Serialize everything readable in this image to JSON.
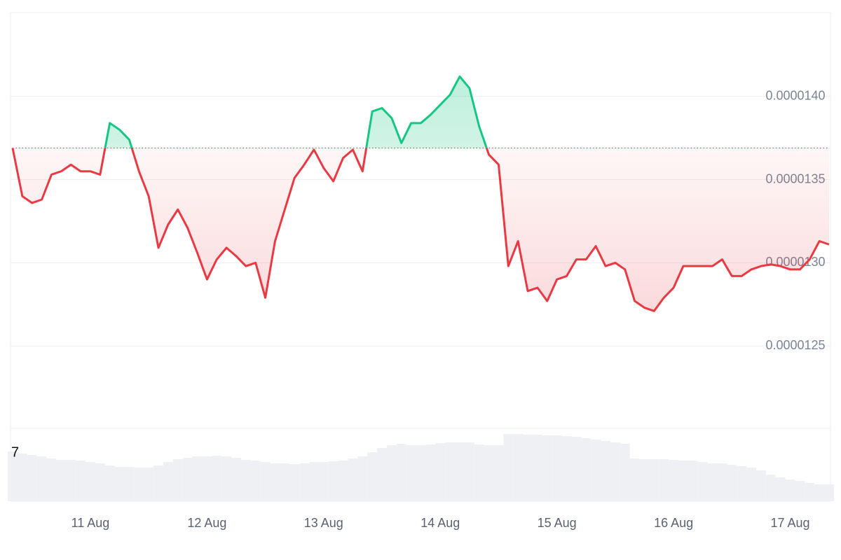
{
  "chart_data": {
    "type": "line",
    "categories": [
      null,
      null,
      null,
      null,
      null,
      null,
      null,
      null,
      "11 Aug",
      null,
      null,
      null,
      null,
      null,
      null,
      null,
      null,
      null,
      null,
      null,
      "12 Aug",
      null,
      null,
      null,
      null,
      null,
      null,
      null,
      null,
      null,
      null,
      null,
      "13 Aug",
      null,
      null,
      null,
      null,
      null,
      null,
      null,
      null,
      null,
      null,
      null,
      "14 Aug",
      null,
      null,
      null,
      null,
      null,
      null,
      null,
      null,
      null,
      null,
      null,
      "15 Aug",
      null,
      null,
      null,
      null,
      null,
      null,
      null,
      null,
      null,
      null,
      null,
      "16 Aug",
      null,
      null,
      null,
      null,
      null,
      null,
      null,
      null,
      null,
      null,
      null,
      "17 Aug",
      null,
      null,
      null,
      null
    ],
    "values": [
      1.369e-05,
      1.34e-05,
      1.336e-05,
      1.338e-05,
      1.353e-05,
      1.355e-05,
      1.359e-05,
      1.355e-05,
      1.355e-05,
      1.353e-05,
      1.384e-05,
      1.38e-05,
      1.374e-05,
      1.355e-05,
      1.34e-05,
      1.309e-05,
      1.323e-05,
      1.332e-05,
      1.321e-05,
      1.306e-05,
      1.29e-05,
      1.302e-05,
      1.309e-05,
      1.304e-05,
      1.298e-05,
      1.3e-05,
      1.279e-05,
      1.313e-05,
      1.332e-05,
      1.351e-05,
      1.359e-05,
      1.368e-05,
      1.357e-05,
      1.349e-05,
      1.363e-05,
      1.368e-05,
      1.355e-05,
      1.391e-05,
      1.393e-05,
      1.387e-05,
      1.372e-05,
      1.384e-05,
      1.384e-05,
      1.389e-05,
      1.395e-05,
      1.401e-05,
      1.412e-05,
      1.405e-05,
      1.382e-05,
      1.365e-05,
      1.359e-05,
      1.298e-05,
      1.313e-05,
      1.283e-05,
      1.285e-05,
      1.277e-05,
      1.29e-05,
      1.292e-05,
      1.302e-05,
      1.302e-05,
      1.31e-05,
      1.298e-05,
      1.3e-05,
      1.296e-05,
      1.277e-05,
      1.273e-05,
      1.271e-05,
      1.279e-05,
      1.285e-05,
      1.298e-05,
      1.298e-05,
      1.298e-05,
      1.298e-05,
      1.302e-05,
      1.292e-05,
      1.292e-05,
      1.296e-05,
      1.298e-05,
      1.299e-05,
      1.298e-05,
      1.296e-05,
      1.296e-05,
      1.302e-05,
      1.313e-05,
      1.311e-05
    ],
    "colors": {
      "up": "#16c784",
      "down": "#ea3943"
    },
    "ylim": [
      1.2e-05,
      1.45e-05
    ],
    "yticks": [
      {
        "value": 1.25e-05,
        "label": "0.0000125"
      },
      {
        "value": 1.3e-05,
        "label": "0.0000130"
      },
      {
        "value": 1.35e-05,
        "label": "0.0000135"
      },
      {
        "value": 1.4e-05,
        "label": "0.0000140"
      }
    ],
    "grid": true,
    "volume_label": "7",
    "volume": [
      71,
      68,
      66,
      64,
      61,
      59,
      59,
      58,
      56,
      54,
      51,
      49,
      49,
      48,
      48,
      51,
      56,
      60,
      62,
      64,
      64,
      65,
      64,
      62,
      59,
      58,
      56,
      54,
      54,
      53,
      54,
      56,
      56,
      57,
      58,
      61,
      64,
      70,
      76,
      80,
      82,
      80,
      80,
      81,
      83,
      84,
      84,
      84,
      81,
      80,
      80,
      96,
      96,
      95,
      95,
      94,
      94,
      93,
      92,
      90,
      88,
      86,
      84,
      82,
      61,
      60,
      60,
      60,
      59,
      58,
      58,
      56,
      54,
      54,
      52,
      50,
      48,
      44,
      38,
      34,
      31,
      29,
      26,
      24,
      24
    ]
  }
}
